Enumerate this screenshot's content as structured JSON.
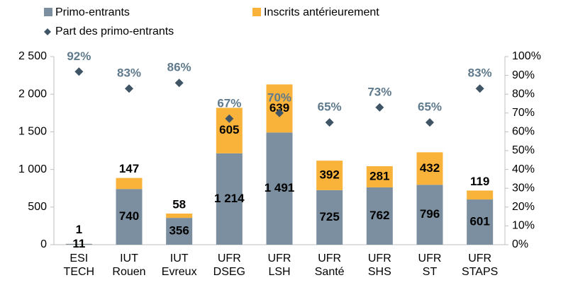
{
  "chart_data": {
    "type": "bar",
    "categories": [
      [
        "ESI",
        "TECH"
      ],
      [
        "IUT",
        "Rouen"
      ],
      [
        "IUT",
        "Evreux"
      ],
      [
        "UFR",
        "DSEG"
      ],
      [
        "UFR",
        "LSH"
      ],
      [
        "UFR",
        "Santé"
      ],
      [
        "UFR",
        "SHS"
      ],
      [
        "UFR",
        "ST"
      ],
      [
        "UFR",
        "STAPS"
      ]
    ],
    "series": [
      {
        "name": "Primo-entrants",
        "color": "#7b8fa0",
        "values": [
          11,
          740,
          356,
          1214,
          1491,
          725,
          762,
          796,
          601
        ],
        "value_labels": [
          "11",
          "740",
          "356",
          "1 214",
          "1 491",
          "725",
          "762",
          "796",
          "601"
        ]
      },
      {
        "name": "Inscrits antérieurement",
        "color": "#f9b33b",
        "values": [
          1,
          147,
          58,
          605,
          639,
          392,
          281,
          432,
          119
        ]
      },
      {
        "name": "Part des primo-entrants",
        "type": "scatter",
        "axis": "y2",
        "color": "#3f5566",
        "values": [
          92,
          83,
          86,
          67,
          70,
          65,
          73,
          65,
          83
        ],
        "value_labels": [
          "92%",
          "83%",
          "86%",
          "67%",
          "70%",
          "65%",
          "73%",
          "65%",
          "83%"
        ]
      }
    ],
    "ylim": [
      0,
      2500
    ],
    "yticks": [
      0,
      500,
      {
        "value": 1000,
        "label": "1 000"
      },
      {
        "value": 1500,
        "label": "1 500"
      },
      {
        "value": 2000,
        "label": "2 000"
      },
      {
        "value": 2500,
        "label": "2 500"
      }
    ],
    "y2lim": [
      0,
      100
    ],
    "y2ticks": [
      {
        "value": 0,
        "label": "0%"
      },
      {
        "value": 10,
        "label": "10%"
      },
      {
        "value": 20,
        "label": "20%"
      },
      {
        "value": 30,
        "label": "30%"
      },
      {
        "value": 40,
        "label": "40%"
      },
      {
        "value": 50,
        "label": "50%"
      },
      {
        "value": 60,
        "label": "60%"
      },
      {
        "value": 70,
        "label": "70%"
      },
      {
        "value": 80,
        "label": "80%"
      },
      {
        "value": 90,
        "label": "90%"
      },
      {
        "value": 100,
        "label": "100%"
      }
    ],
    "legend": "top",
    "grid": false
  }
}
